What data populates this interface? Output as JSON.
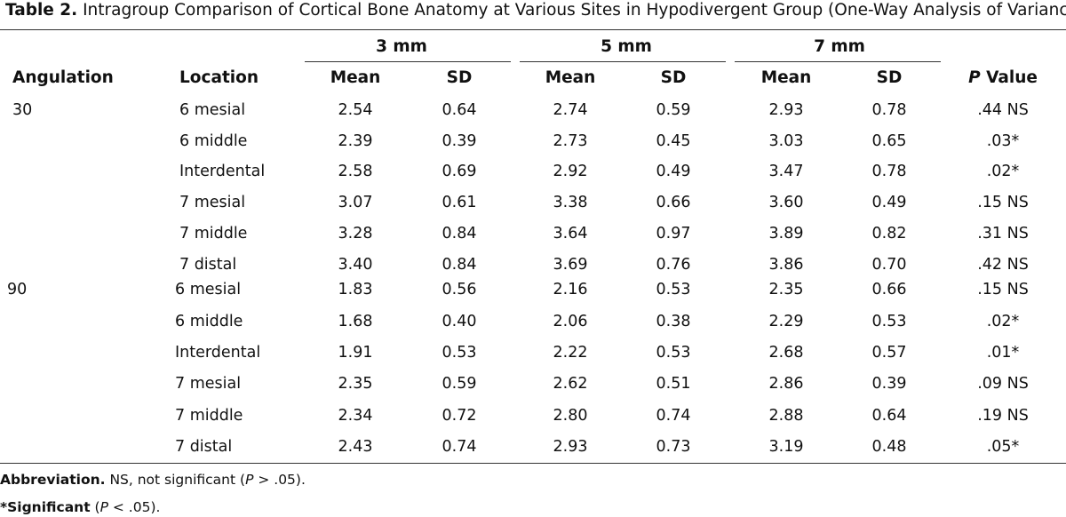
{
  "caption": {
    "label": "Table 2.",
    "text": "Intragroup Comparison of Cortical Bone Anatomy at Various Sites in Hypodivergent Group (One-Way Analysis of Variance)"
  },
  "header": {
    "group_3": "3 mm",
    "group_5": "5 mm",
    "group_7": "7 mm",
    "angulation": "Angulation",
    "location": "Location",
    "mean": "Mean",
    "sd": "SD",
    "p_italic": "P",
    "p_rest": " Value"
  },
  "rows": [
    {
      "angulation": "30",
      "location": "6 mesial",
      "m3": "2.54",
      "s3": "0.64",
      "m5": "2.74",
      "s5": "0.59",
      "m7": "2.93",
      "s7": "0.78",
      "p": ".44 NS"
    },
    {
      "angulation": "",
      "location": "6 middle",
      "m3": "2.39",
      "s3": "0.39",
      "m5": "2.73",
      "s5": "0.45",
      "m7": "3.03",
      "s7": "0.65",
      "p": ".03*"
    },
    {
      "angulation": "",
      "location": "Interdental",
      "m3": "2.58",
      "s3": "0.69",
      "m5": "2.92",
      "s5": "0.49",
      "m7": "3.47",
      "s7": "0.78",
      "p": ".02*"
    },
    {
      "angulation": "",
      "location": "7 mesial",
      "m3": "3.07",
      "s3": "0.61",
      "m5": "3.38",
      "s5": "0.66",
      "m7": "3.60",
      "s7": "0.49",
      "p": ".15 NS"
    },
    {
      "angulation": "",
      "location": "7 middle",
      "m3": "3.28",
      "s3": "0.84",
      "m5": "3.64",
      "s5": "0.97",
      "m7": "3.89",
      "s7": "0.82",
      "p": ".31 NS"
    },
    {
      "angulation": "",
      "location": "7 distal",
      "m3": "3.40",
      "s3": "0.84",
      "m5": "3.69",
      "s5": "0.76",
      "m7": "3.86",
      "s7": "0.70",
      "p": ".42 NS"
    },
    {
      "angulation": "90",
      "location": "6 mesial",
      "m3": "1.83",
      "s3": "0.56",
      "m5": "2.16",
      "s5": "0.53",
      "m7": "2.35",
      "s7": "0.66",
      "p": ".15 NS"
    },
    {
      "angulation": "",
      "location": "6 middle",
      "m3": "1.68",
      "s3": "0.40",
      "m5": "2.06",
      "s5": "0.38",
      "m7": "2.29",
      "s7": "0.53",
      "p": ".02*"
    },
    {
      "angulation": "",
      "location": "Interdental",
      "m3": "1.91",
      "s3": "0.53",
      "m5": "2.22",
      "s5": "0.53",
      "m7": "2.68",
      "s7": "0.57",
      "p": ".01*"
    },
    {
      "angulation": "",
      "location": "7 mesial",
      "m3": "2.35",
      "s3": "0.59",
      "m5": "2.62",
      "s5": "0.51",
      "m7": "2.86",
      "s7": "0.39",
      "p": ".09 NS"
    },
    {
      "angulation": "",
      "location": "7 middle",
      "m3": "2.34",
      "s3": "0.72",
      "m5": "2.80",
      "s5": "0.74",
      "m7": "2.88",
      "s7": "0.64",
      "p": ".19 NS"
    },
    {
      "angulation": "",
      "location": "7 distal",
      "m3": "2.43",
      "s3": "0.74",
      "m5": "2.93",
      "s5": "0.73",
      "m7": "3.19",
      "s7": "0.48",
      "p": ".05*"
    }
  ],
  "footnotes": {
    "abbrev_label": "Abbreviation.",
    "abbrev_pre": " NS, not significant (",
    "abbrev_p": "P",
    "abbrev_post": " > .05).",
    "sig_label": "*Significant",
    "sig_pre": " (",
    "sig_p": "P",
    "sig_post": " < .05)."
  }
}
